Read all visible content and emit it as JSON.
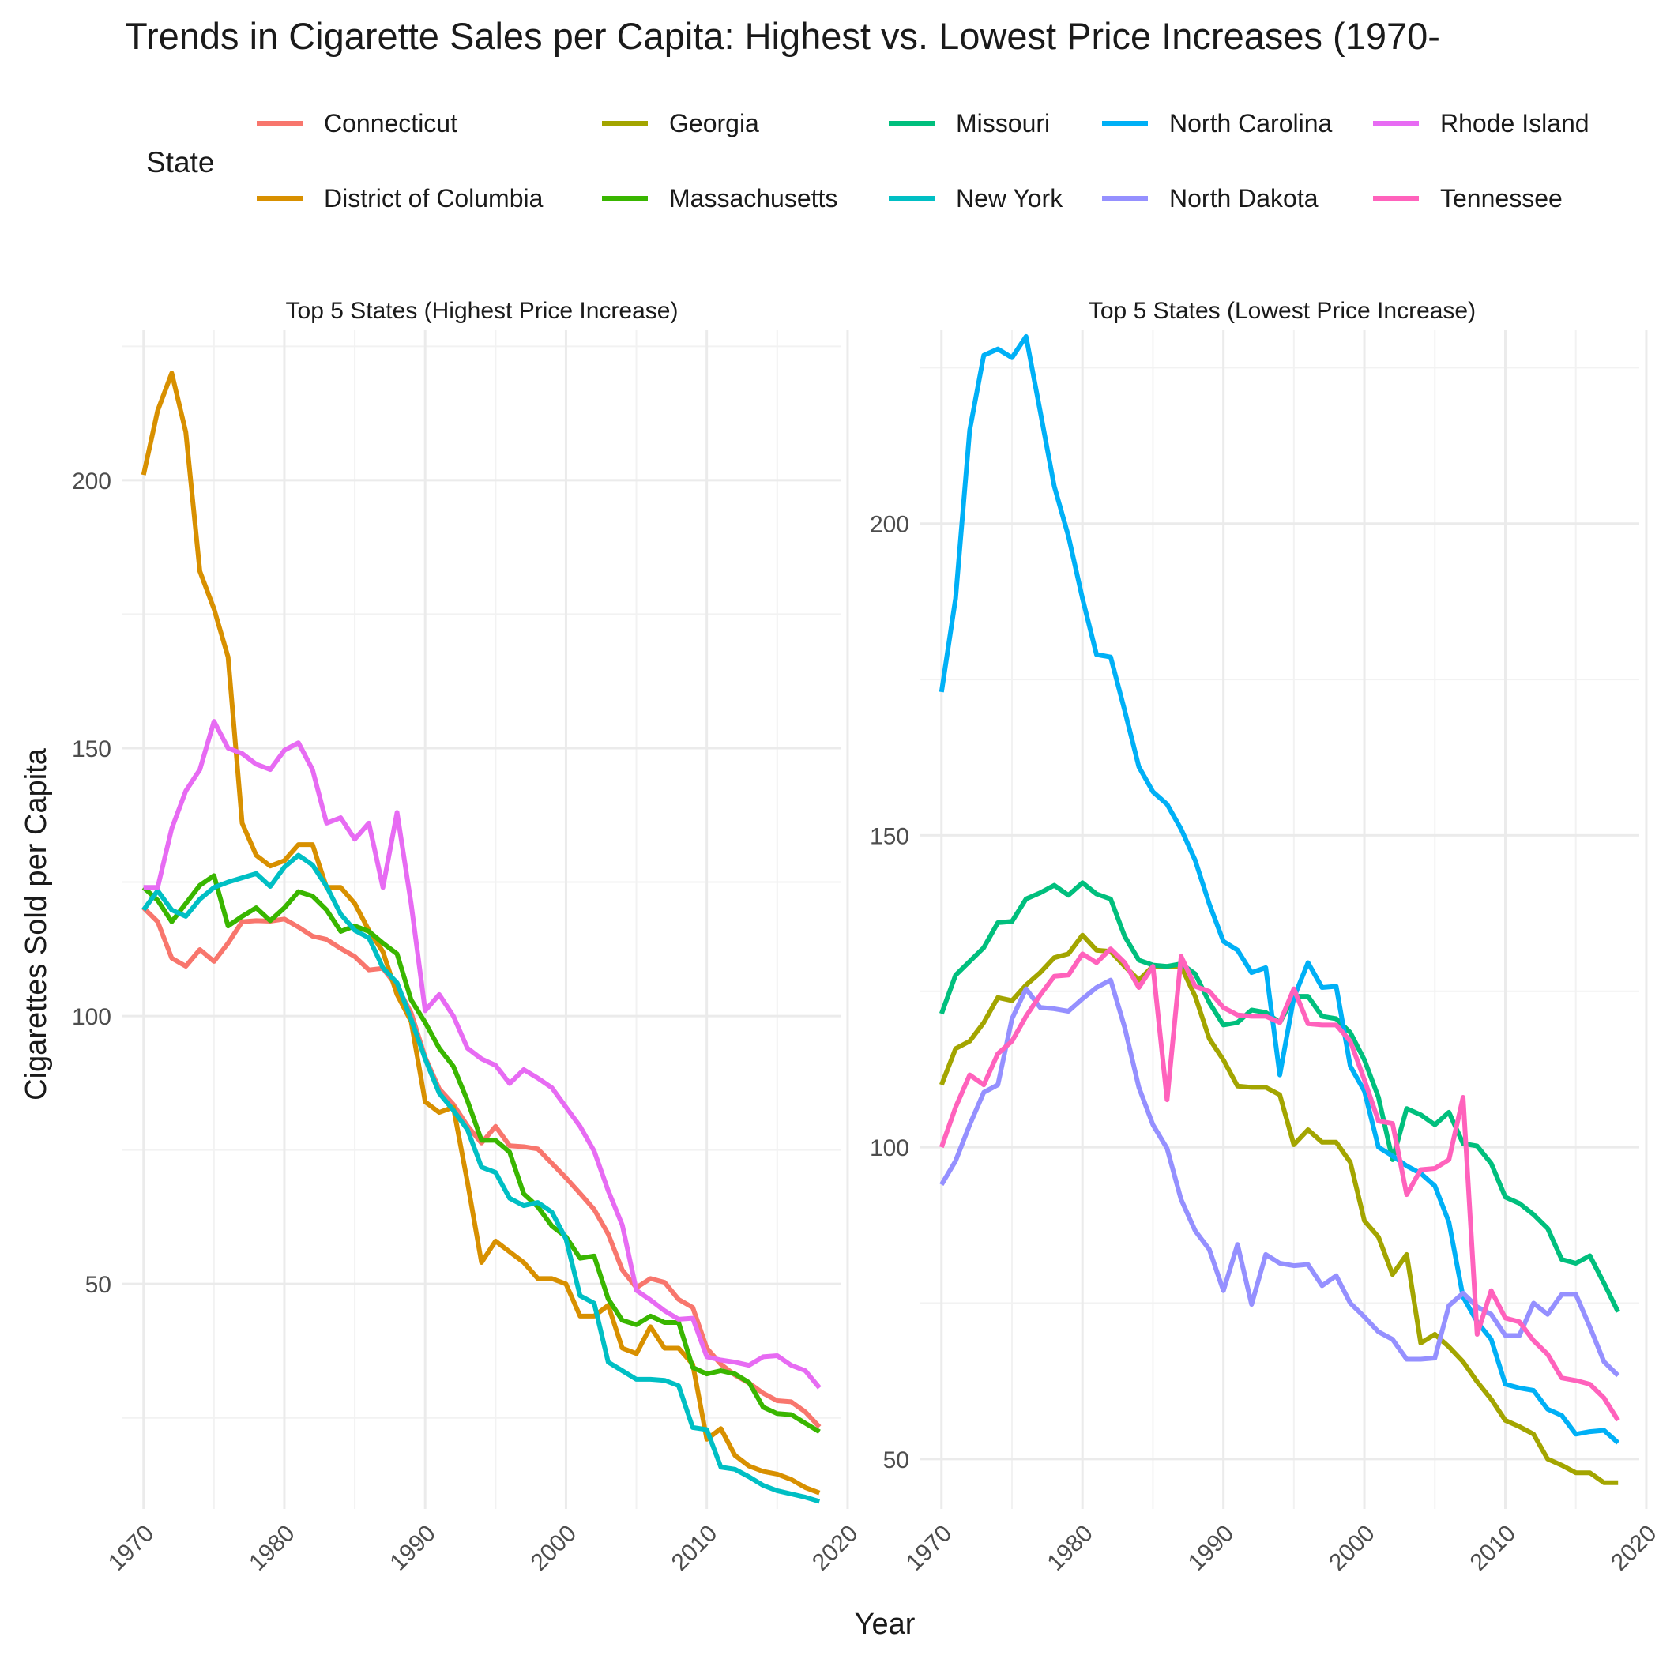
{
  "chart_data": {
    "type": "line",
    "title": "Trends in Cigarette Sales per Capita: Highest vs. Lowest Price Increases (1970-",
    "xlabel": "Year",
    "ylabel": "Cigarettes Sold per Capita",
    "legend": {
      "title": "State",
      "placement": "top",
      "entries": [
        {
          "name": "Connecticut",
          "color": "#F8766D"
        },
        {
          "name": "District of Columbia",
          "color": "#D89000"
        },
        {
          "name": "Georgia",
          "color": "#A3A500"
        },
        {
          "name": "Massachusetts",
          "color": "#39B600"
        },
        {
          "name": "Missouri",
          "color": "#00BF7D"
        },
        {
          "name": "New York",
          "color": "#00BFC4"
        },
        {
          "name": "North Carolina",
          "color": "#00B0F6"
        },
        {
          "name": "North Dakota",
          "color": "#9590FF"
        },
        {
          "name": "Rhode Island",
          "color": "#E76BF3"
        },
        {
          "name": "Tennessee",
          "color": "#FF62BC"
        }
      ]
    },
    "x_start_year": 1970,
    "xlim": [
      1968.5,
      2019.5
    ],
    "xticks": [
      1970,
      1980,
      1990,
      2000,
      2010,
      2020
    ],
    "grid": true,
    "panels": [
      {
        "title": "Top 5 States (Highest Price Increase)",
        "ylim": [
          8,
          228
        ],
        "yticks": [
          50,
          100,
          150,
          200
        ],
        "series": [
          {
            "name": "Connecticut",
            "color": "#F8766D",
            "values": [
              120.2,
              117.6,
              110.8,
              109.3,
              112.4,
              110.2,
              113.6,
              117.6,
              117.8,
              117.7,
              118.1,
              116.6,
              114.9,
              114.3,
              112.6,
              111.1,
              108.6,
              108.9,
              105.5,
              100.6,
              92.3,
              86.4,
              83.5,
              79.5,
              76.3,
              79.4,
              75.8,
              75.6,
              75.2,
              72.5,
              69.8,
              66.9,
              63.9,
              59.3,
              52.6,
              49.3,
              51.0,
              50.3,
              47.1,
              45.6,
              38.0,
              35.0,
              33.0,
              31.5,
              29.6,
              28.2,
              28.0,
              26.1,
              23.3
            ]
          },
          {
            "name": "District of Columbia",
            "color": "#D89000",
            "values": [
              201.0,
              213.0,
              220.0,
              209.0,
              183.0,
              176.0,
              167.0,
              136.0,
              130.0,
              128.0,
              129.0,
              132.0,
              132.0,
              124.0,
              124.0,
              121.0,
              116.0,
              112.0,
              104.0,
              99.0,
              84.0,
              82.0,
              83.0,
              69.0,
              54.0,
              58.0,
              56.0,
              54.0,
              51.0,
              51.0,
              50.0,
              44.0,
              44.0,
              46.0,
              38.0,
              37.0,
              42.0,
              38.0,
              38.0,
              35.0,
              21.0,
              23.0,
              18.0,
              16.0,
              15.0,
              14.5,
              13.5,
              12.0,
              11.0
            ]
          },
          {
            "name": "Massachusetts",
            "color": "#39B600",
            "values": [
              124.0,
              121.6,
              117.6,
              121.0,
              124.4,
              126.2,
              116.8,
              118.6,
              120.2,
              117.8,
              120.2,
              123.2,
              122.4,
              119.8,
              115.8,
              116.8,
              115.8,
              113.6,
              111.6,
              103.0,
              98.8,
              94.0,
              90.6,
              84.2,
              76.8,
              76.8,
              74.6,
              66.8,
              64.4,
              60.8,
              58.8,
              54.8,
              55.2,
              47.2,
              43.2,
              42.4,
              44.0,
              42.8,
              42.8,
              34.4,
              33.2,
              33.8,
              33.2,
              31.6,
              27.0,
              25.8,
              25.6,
              24.0,
              22.4
            ]
          },
          {
            "name": "New York",
            "color": "#00BFC4",
            "values": [
              119.8,
              123.4,
              119.8,
              118.6,
              121.8,
              124.0,
              125.0,
              125.8,
              126.6,
              124.2,
              127.8,
              130.0,
              128.2,
              124.2,
              119.0,
              116.0,
              114.6,
              109.0,
              106.2,
              99.4,
              92.0,
              85.6,
              82.4,
              78.8,
              71.8,
              70.8,
              66.0,
              64.6,
              65.2,
              63.4,
              58.4,
              47.8,
              46.4,
              35.4,
              33.8,
              32.2,
              32.2,
              32.0,
              31.0,
              23.2,
              22.8,
              15.8,
              15.4,
              14.0,
              12.4,
              11.4,
              10.8,
              10.2,
              9.4
            ]
          },
          {
            "name": "Rhode Island",
            "color": "#E76BF3",
            "values": [
              124.0,
              124.0,
              135.0,
              142.0,
              146.0,
              155.0,
              150.0,
              149.0,
              147.0,
              146.0,
              149.6,
              151.0,
              146.0,
              136.0,
              137.0,
              133.0,
              136.0,
              124.0,
              138.0,
              121.0,
              101.0,
              104.0,
              100.0,
              94.0,
              92.0,
              90.8,
              87.4,
              90.0,
              88.4,
              86.6,
              83.0,
              79.4,
              74.8,
              67.4,
              61.0,
              48.8,
              47.0,
              45.0,
              43.4,
              43.6,
              36.4,
              35.8,
              35.4,
              34.8,
              36.4,
              36.6,
              34.8,
              33.8,
              30.6
            ]
          }
        ]
      },
      {
        "title": "Top 5 States (Lowest Price Increase)",
        "ylim": [
          42,
          231
        ],
        "yticks": [
          50,
          100,
          150,
          200
        ],
        "series": [
          {
            "name": "Georgia",
            "color": "#A3A500",
            "values": [
              110.0,
              115.8,
              117.0,
              120.0,
              124.0,
              123.5,
              126.0,
              128.0,
              130.4,
              131.0,
              134.0,
              131.6,
              131.4,
              129.0,
              126.8,
              129.0,
              129.0,
              129.0,
              124.2,
              117.4,
              114.0,
              109.8,
              109.6,
              109.6,
              108.4,
              100.4,
              102.8,
              100.8,
              100.8,
              97.6,
              88.2,
              85.6,
              79.6,
              82.8,
              68.6,
              70.0,
              68.0,
              65.6,
              62.4,
              59.6,
              56.2,
              55.2,
              54.0,
              50.0,
              49.0,
              47.8,
              47.8,
              46.2,
              46.2
            ]
          },
          {
            "name": "Missouri",
            "color": "#00BF7D",
            "values": [
              121.4,
              127.6,
              129.8,
              132.0,
              136.0,
              136.2,
              139.8,
              140.8,
              142.0,
              140.4,
              142.4,
              140.6,
              139.8,
              133.8,
              130.0,
              129.2,
              129.0,
              129.4,
              127.8,
              123.2,
              119.6,
              120.0,
              122.0,
              121.6,
              120.0,
              124.2,
              124.2,
              121.0,
              120.6,
              118.4,
              114.0,
              108.0,
              98.0,
              106.2,
              105.2,
              103.6,
              105.6,
              100.6,
              100.2,
              97.4,
              92.0,
              91.0,
              89.2,
              87.0,
              82.0,
              81.4,
              82.6,
              78.2,
              73.6
            ]
          },
          {
            "name": "North Carolina",
            "color": "#00B0F6",
            "values": [
              173.0,
              188.0,
              215.0,
              227.0,
              228.0,
              226.6,
              230.0,
              218.0,
              206.0,
              198.0,
              188.0,
              179.0,
              178.6,
              170.0,
              161.0,
              157.0,
              155.0,
              151.0,
              146.0,
              139.0,
              133.0,
              131.6,
              128.0,
              128.8,
              111.6,
              124.0,
              129.6,
              125.6,
              125.8,
              113.0,
              109.0,
              100.0,
              98.6,
              97.0,
              95.8,
              93.8,
              88.0,
              76.0,
              72.0,
              69.2,
              62.0,
              61.4,
              61.0,
              58.0,
              57.0,
              54.0,
              54.4,
              54.6,
              52.6
            ]
          },
          {
            "name": "North Dakota",
            "color": "#9590FF",
            "values": [
              94.0,
              97.8,
              103.6,
              108.8,
              110.0,
              120.6,
              125.4,
              122.4,
              122.2,
              121.8,
              123.8,
              125.6,
              126.8,
              119.2,
              109.6,
              103.6,
              99.8,
              91.6,
              86.6,
              83.6,
              77.0,
              84.4,
              74.8,
              82.8,
              81.4,
              81.0,
              81.2,
              77.8,
              79.4,
              75.0,
              72.8,
              70.4,
              69.2,
              66.0,
              66.0,
              66.2,
              74.6,
              76.6,
              74.4,
              73.2,
              69.8,
              69.8,
              75.0,
              73.2,
              76.4,
              76.4,
              71.2,
              65.6,
              63.4
            ]
          },
          {
            "name": "Tennessee",
            "color": "#FF62BC",
            "values": [
              100.0,
              106.4,
              111.6,
              110.0,
              115.0,
              117.0,
              121.0,
              124.4,
              127.4,
              127.6,
              131.0,
              129.6,
              131.8,
              129.6,
              125.6,
              129.0,
              107.6,
              130.6,
              125.8,
              125.0,
              122.4,
              121.2,
              121.0,
              121.0,
              120.0,
              125.4,
              119.8,
              119.6,
              119.6,
              117.0,
              110.8,
              104.2,
              103.8,
              92.4,
              96.4,
              96.6,
              98.0,
              108.0,
              70.0,
              77.0,
              72.6,
              72.0,
              69.0,
              66.8,
              63.0,
              62.6,
              62.0,
              59.8,
              56.2
            ]
          }
        ]
      }
    ]
  }
}
